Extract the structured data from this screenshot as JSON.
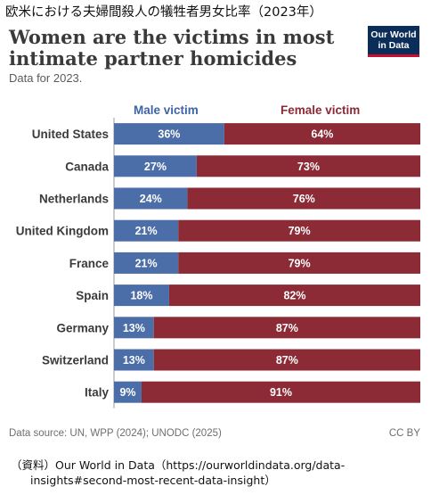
{
  "caption": "欧米における夫婦間殺人の犠牲者男女比率（2023年）",
  "title": "Women are the victims in most intimate partner homicides",
  "subtitle": "Data for 2023.",
  "logo": {
    "line1": "Our World",
    "line2": "in Data"
  },
  "footer": {
    "source": "Data source: UN, WPP (2024); UNODC (2025)",
    "license": "CC BY"
  },
  "source_note": {
    "line1": "（資料）Our World in Data（https://ourworldindata.org/data-",
    "line2": "insights#second-most-recent-data-insight）"
  },
  "colors": {
    "male": "#4c6ea8",
    "female": "#8c2a36",
    "male_text": "#3f63a3",
    "female_text": "#8c2a36"
  },
  "chart_data": {
    "type": "bar",
    "orientation": "horizontal-stacked",
    "stacking": "percent",
    "categories": [
      "United States",
      "Canada",
      "Netherlands",
      "United Kingdom",
      "France",
      "Spain",
      "Germany",
      "Switzerland",
      "Italy"
    ],
    "series": [
      {
        "name": "Male victim",
        "values": [
          36,
          27,
          24,
          21,
          21,
          18,
          13,
          13,
          9
        ]
      },
      {
        "name": "Female victim",
        "values": [
          64,
          73,
          76,
          79,
          79,
          82,
          87,
          87,
          91
        ]
      }
    ],
    "value_suffix": "%",
    "xlim": [
      0,
      100
    ],
    "legend": "top"
  }
}
